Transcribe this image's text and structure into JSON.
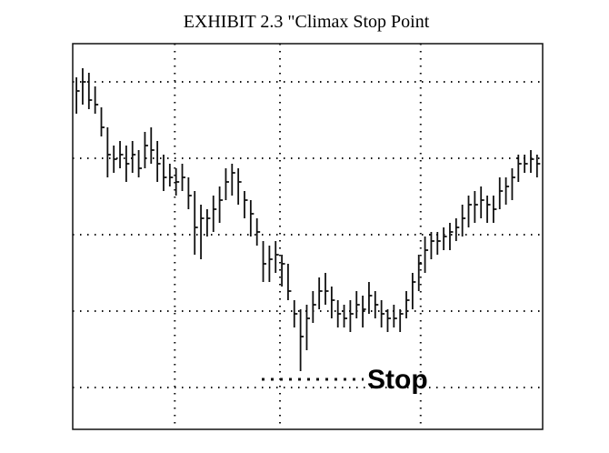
{
  "chart_data": {
    "type": "ohlc",
    "title": "EXHIBIT 2.3 \"Climax Stop Point",
    "annotation": "Stop",
    "color": "#111111",
    "x": [
      1,
      2,
      3,
      4,
      5,
      6,
      7,
      8,
      9,
      10,
      11,
      12,
      13,
      14,
      15,
      16,
      17,
      18,
      19,
      20,
      21,
      22,
      23,
      24,
      25,
      26,
      27,
      28,
      29,
      30,
      31,
      32,
      33,
      34,
      35,
      36,
      37,
      38,
      39,
      40,
      41,
      42,
      43,
      44,
      45,
      46,
      47,
      48,
      49,
      50,
      51,
      52,
      53,
      54,
      55,
      56,
      57,
      58,
      59,
      60,
      61,
      62,
      63,
      64,
      65,
      66,
      67,
      68,
      69,
      70,
      71,
      72,
      73,
      74,
      75
    ],
    "high": [
      415,
      425,
      420,
      405,
      382,
      360,
      340,
      345,
      340,
      345,
      335,
      355,
      360,
      345,
      330,
      320,
      315,
      320,
      305,
      290,
      275,
      270,
      285,
      295,
      315,
      320,
      315,
      290,
      280,
      260,
      235,
      230,
      235,
      220,
      210,
      170,
      160,
      165,
      180,
      195,
      200,
      185,
      170,
      165,
      170,
      180,
      175,
      190,
      180,
      170,
      160,
      165,
      160,
      180,
      200,
      220,
      240,
      245,
      245,
      250,
      255,
      260,
      275,
      285,
      290,
      295,
      285,
      285,
      305,
      305,
      315,
      330,
      330,
      335,
      330
    ],
    "low": [
      375,
      385,
      380,
      375,
      350,
      305,
      310,
      315,
      300,
      310,
      305,
      315,
      320,
      300,
      290,
      295,
      285,
      290,
      270,
      220,
      215,
      240,
      245,
      255,
      280,
      285,
      275,
      260,
      240,
      230,
      190,
      190,
      200,
      185,
      170,
      140,
      92,
      115,
      145,
      160,
      165,
      150,
      140,
      140,
      135,
      150,
      140,
      155,
      150,
      140,
      135,
      140,
      135,
      150,
      160,
      180,
      200,
      215,
      220,
      225,
      225,
      235,
      240,
      250,
      255,
      260,
      255,
      255,
      270,
      275,
      280,
      300,
      310,
      310,
      305
    ],
    "close": [
      400,
      410,
      390,
      385,
      360,
      330,
      325,
      330,
      320,
      330,
      315,
      340,
      335,
      320,
      305,
      305,
      300,
      305,
      285,
      250,
      260,
      260,
      270,
      280,
      300,
      310,
      300,
      280,
      265,
      245,
      210,
      215,
      220,
      210,
      180,
      155,
      130,
      150,
      165,
      180,
      180,
      170,
      155,
      150,
      155,
      165,
      160,
      175,
      165,
      155,
      150,
      150,
      155,
      170,
      190,
      210,
      225,
      235,
      235,
      240,
      245,
      250,
      260,
      275,
      275,
      280,
      275,
      270,
      290,
      295,
      305,
      320,
      320,
      325,
      320
    ],
    "xlim": [
      0.4,
      75.9
    ],
    "ylim": [
      28,
      452
    ],
    "xgrid": [
      16.8,
      33.7,
      56.3
    ],
    "ygrid": [
      74,
      158,
      242,
      326,
      410
    ],
    "grid": true
  }
}
